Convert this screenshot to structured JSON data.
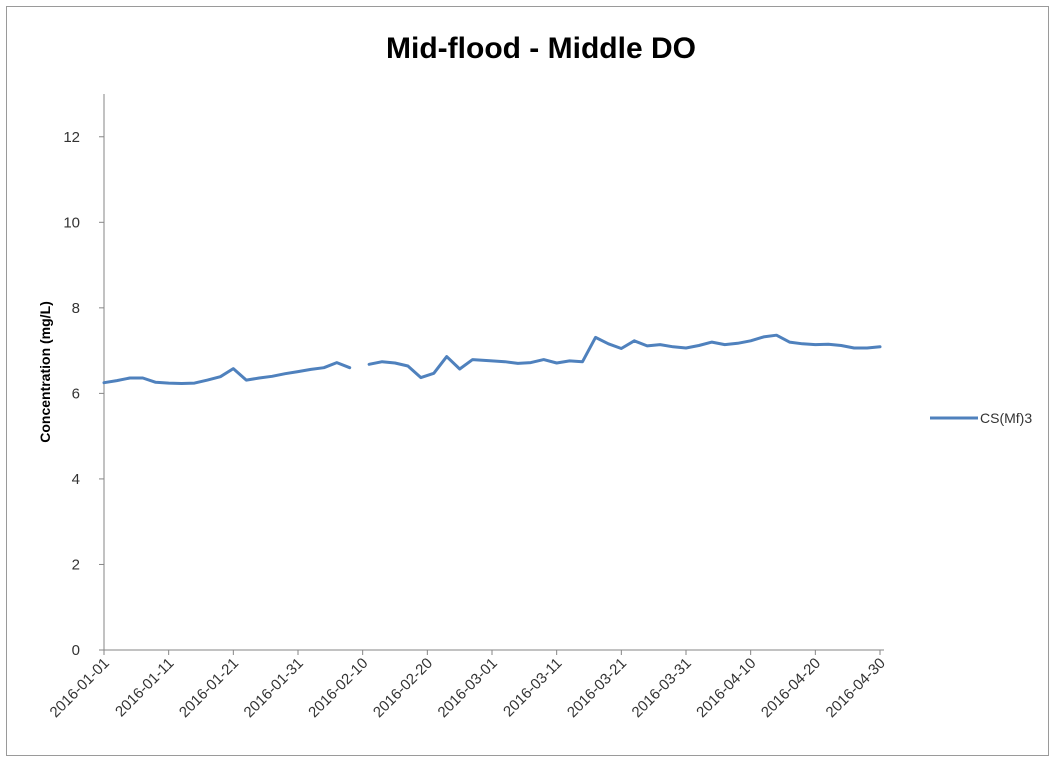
{
  "chart_data": {
    "type": "line",
    "title": "Mid-flood - Middle DO",
    "xlabel": "",
    "ylabel": "Concentration (mg/L)",
    "ylim": [
      0,
      13
    ],
    "yticks": [
      0,
      2,
      4,
      6,
      8,
      10,
      12
    ],
    "xlim": [
      "2016-01-01",
      "2016-04-30"
    ],
    "xticks": [
      "2016-01-01",
      "2016-01-11",
      "2016-01-21",
      "2016-01-31",
      "2016-02-10",
      "2016-02-20",
      "2016-03-01",
      "2016-03-11",
      "2016-03-21",
      "2016-03-31",
      "2016-04-10",
      "2016-04-20",
      "2016-04-30"
    ],
    "grid": false,
    "legend_position": "right",
    "line_color": "#4f81bd",
    "series": [
      {
        "name": "CS(Mf)3",
        "segments": [
          {
            "x": [
              "2016-01-01",
              "2016-01-03",
              "2016-01-05",
              "2016-01-07",
              "2016-01-09",
              "2016-01-11",
              "2016-01-13",
              "2016-01-15",
              "2016-01-17",
              "2016-01-19",
              "2016-01-21",
              "2016-01-23",
              "2016-01-25",
              "2016-01-27",
              "2016-01-29",
              "2016-01-31",
              "2016-02-02",
              "2016-02-04",
              "2016-02-06",
              "2016-02-08"
            ],
            "y": [
              6.25,
              6.3,
              6.36,
              6.36,
              6.26,
              6.24,
              6.23,
              6.24,
              6.31,
              6.39,
              6.58,
              6.31,
              6.36,
              6.4,
              6.46,
              6.51,
              6.56,
              6.6,
              6.72,
              6.6
            ]
          },
          {
            "x": [
              "2016-02-11",
              "2016-02-13",
              "2016-02-15",
              "2016-02-17",
              "2016-02-19",
              "2016-02-21",
              "2016-02-23",
              "2016-02-25",
              "2016-02-27",
              "2016-03-01",
              "2016-03-03",
              "2016-03-05",
              "2016-03-07",
              "2016-03-09",
              "2016-03-11",
              "2016-03-13",
              "2016-03-15",
              "2016-03-17",
              "2016-03-19",
              "2016-03-21",
              "2016-03-23",
              "2016-03-25",
              "2016-03-27",
              "2016-03-29",
              "2016-03-31",
              "2016-04-02",
              "2016-04-04",
              "2016-04-06",
              "2016-04-08",
              "2016-04-10",
              "2016-04-12",
              "2016-04-14",
              "2016-04-16",
              "2016-04-18",
              "2016-04-20",
              "2016-04-22",
              "2016-04-24",
              "2016-04-26",
              "2016-04-28",
              "2016-04-30"
            ],
            "y": [
              6.68,
              6.74,
              6.71,
              6.64,
              6.37,
              6.47,
              6.86,
              6.57,
              6.79,
              6.76,
              6.74,
              6.7,
              6.72,
              6.79,
              6.71,
              6.76,
              6.74,
              7.31,
              7.16,
              7.05,
              7.23,
              7.11,
              7.14,
              7.09,
              7.06,
              7.12,
              7.2,
              7.14,
              7.17,
              7.23,
              7.32,
              7.36,
              7.2,
              7.16,
              7.14,
              7.15,
              7.12,
              7.06,
              7.06,
              7.09
            ]
          }
        ]
      }
    ]
  }
}
